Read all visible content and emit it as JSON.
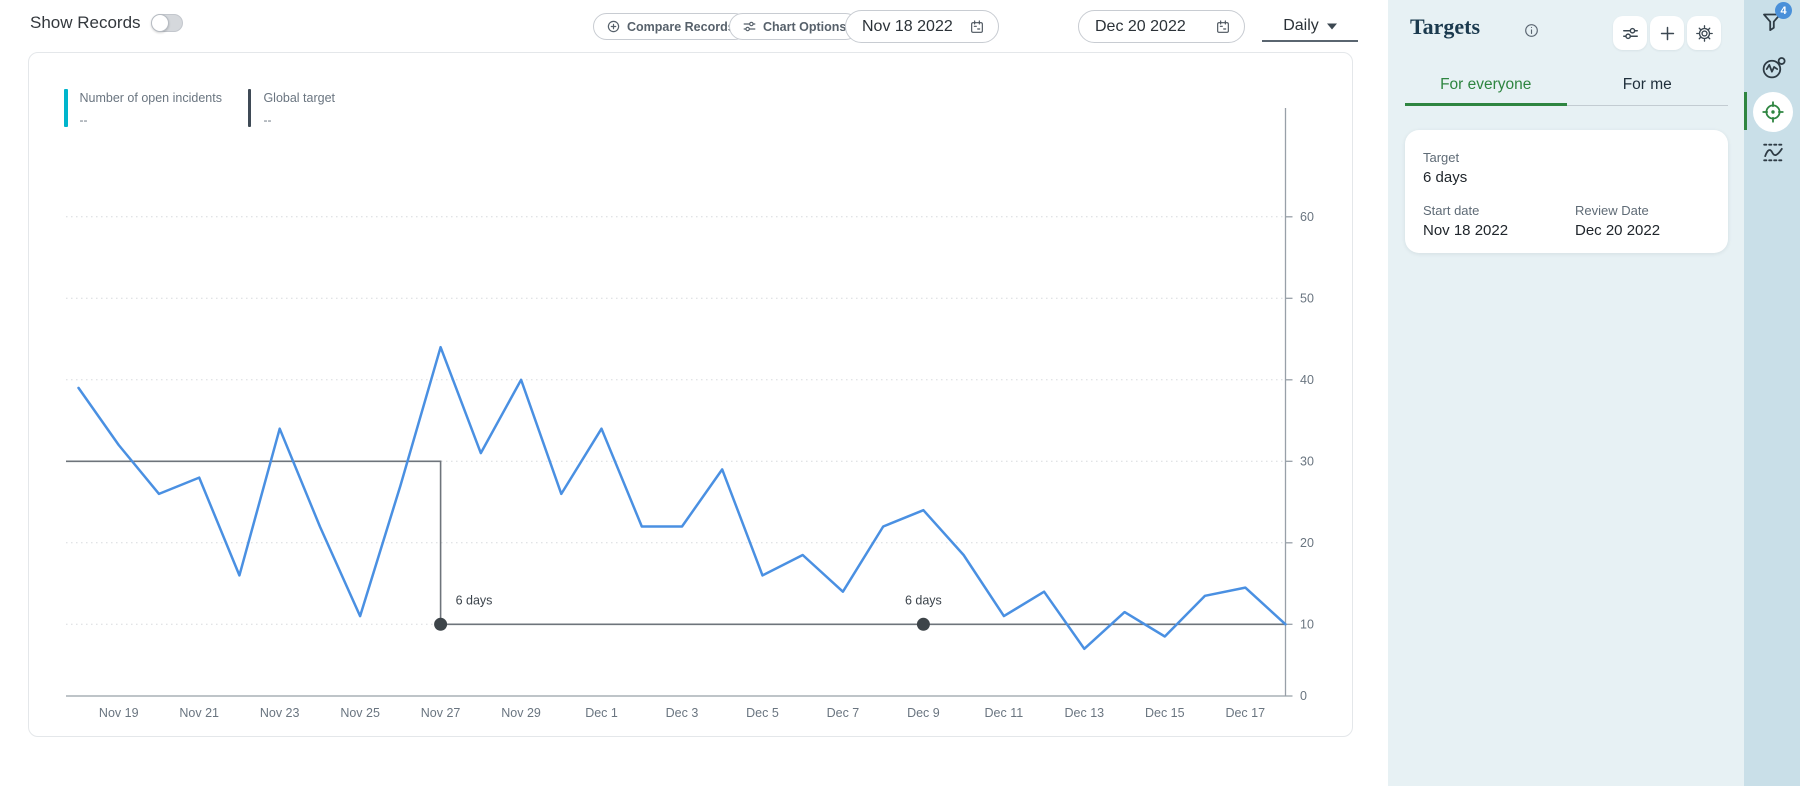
{
  "toolbar": {
    "show_records_label": "Show Records",
    "compare_records_label": "Compare Records",
    "chart_options_label": "Chart Options",
    "start_date": "Nov 18 2022",
    "end_date": "Dec 20 2022",
    "granularity": "Daily"
  },
  "chart": {
    "legend": [
      {
        "label": "Number of open incidents",
        "value": "--",
        "color": "#00b5cc"
      },
      {
        "label": "Global target",
        "value": "--",
        "color": "#3f4a56"
      }
    ]
  },
  "chart_data": {
    "type": "line",
    "title": "",
    "xlabel": "",
    "ylabel": "",
    "ylim": [
      0,
      65
    ],
    "yticks": [
      0,
      10,
      20,
      30,
      40,
      50,
      60
    ],
    "grid": "horizontal-dotted",
    "y_axis_side": "right",
    "legend_position": "top-left",
    "categories": [
      "Nov 18",
      "Nov 19",
      "Nov 20",
      "Nov 21",
      "Nov 22",
      "Nov 23",
      "Nov 24",
      "Nov 25",
      "Nov 26",
      "Nov 27",
      "Nov 28",
      "Nov 29",
      "Nov 30",
      "Dec 1",
      "Dec 2",
      "Dec 3",
      "Dec 4",
      "Dec 5",
      "Dec 6",
      "Dec 7",
      "Dec 8",
      "Dec 9",
      "Dec 10",
      "Dec 11",
      "Dec 12",
      "Dec 13",
      "Dec 14",
      "Dec 15",
      "Dec 16",
      "Dec 17",
      "Dec 18"
    ],
    "x_ticks": [
      "Nov 19",
      "Nov 21",
      "Nov 23",
      "Nov 25",
      "Nov 27",
      "Nov 29",
      "Dec 1",
      "Dec 3",
      "Dec 5",
      "Dec 7",
      "Dec 9",
      "Dec 11",
      "Dec 13",
      "Dec 15",
      "Dec 17"
    ],
    "series": [
      {
        "name": "Number of open incidents",
        "color": "#4a90e2",
        "values": [
          39,
          32,
          26,
          28,
          16,
          34,
          22,
          11,
          27,
          44,
          31,
          40,
          26,
          34,
          22,
          22,
          29,
          16,
          18.5,
          14,
          22,
          24,
          18.5,
          11,
          14,
          7,
          11.5,
          8.5,
          13.5,
          14.5,
          10
        ]
      }
    ],
    "target": {
      "name": "Global target",
      "color": "#6e747b",
      "dot_color": "#3d4449",
      "steps": [
        {
          "from": "Nov 18",
          "value": 30
        },
        {
          "from": "Nov 27",
          "value": 10
        }
      ],
      "markers": [
        {
          "date": "Nov 27",
          "value": 10,
          "label": "6 days",
          "align": "right"
        },
        {
          "date": "Dec 9",
          "value": 10,
          "label": "6 days",
          "align": "center"
        }
      ]
    }
  },
  "targets_panel": {
    "title": "Targets",
    "tabs": [
      {
        "label": "For everyone",
        "active": true
      },
      {
        "label": "For me",
        "active": false
      }
    ],
    "card": {
      "target_label": "Target",
      "target_value": "6 days",
      "start_label": "Start date",
      "start_value": "Nov 18 2022",
      "review_label": "Review Date",
      "review_value": "Dec 20 2022"
    }
  },
  "rail": {
    "badge_count": "4",
    "icons": [
      "filter",
      "pulse-monitor",
      "target-active",
      "wave-annotation"
    ]
  },
  "colors": {
    "accent_blue": "#4a90e2",
    "target_gray": "#6e747b",
    "legend_teal": "#00b5cc",
    "legend_slate": "#3f4a56",
    "green": "#2e8540",
    "badge_blue": "#4a90d9",
    "panel_bg": "#e7f1f4",
    "rail_bg": "#c9dfe8"
  }
}
